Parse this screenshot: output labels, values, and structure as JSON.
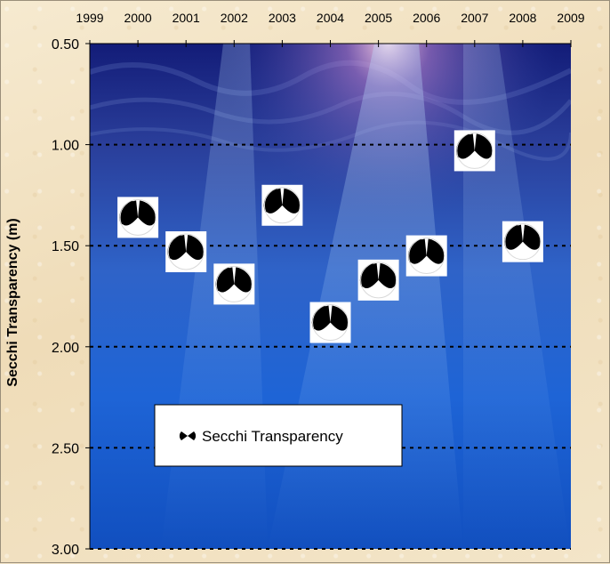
{
  "chart_data": {
    "type": "scatter",
    "title": "",
    "xlabel": "",
    "ylabel": "Secchi Transparency (m)",
    "x_ticks": [
      "1999",
      "2000",
      "2001",
      "2002",
      "2003",
      "2004",
      "2005",
      "2006",
      "2007",
      "2008",
      "2009"
    ],
    "xlim": [
      1999,
      2009
    ],
    "y_ticks": [
      "0.50",
      "1.00",
      "1.50",
      "2.00",
      "2.50",
      "3.00"
    ],
    "ylim": [
      0.5,
      3.0
    ],
    "y_inverted": true,
    "x_axis_position": "top",
    "gridlines": "dashed horizontal at 1.00, 1.50, 2.00, 2.50, 3.00",
    "series": [
      {
        "name": "Secchi Transparency",
        "marker": "secchi-disk",
        "x": [
          2000,
          2001,
          2002,
          2003,
          2004,
          2005,
          2006,
          2007,
          2008
        ],
        "y": [
          1.36,
          1.53,
          1.69,
          1.3,
          1.88,
          1.67,
          1.55,
          1.03,
          1.48
        ]
      }
    ],
    "legend": {
      "label": "Secchi Transparency",
      "placement": "lower-left"
    }
  }
}
